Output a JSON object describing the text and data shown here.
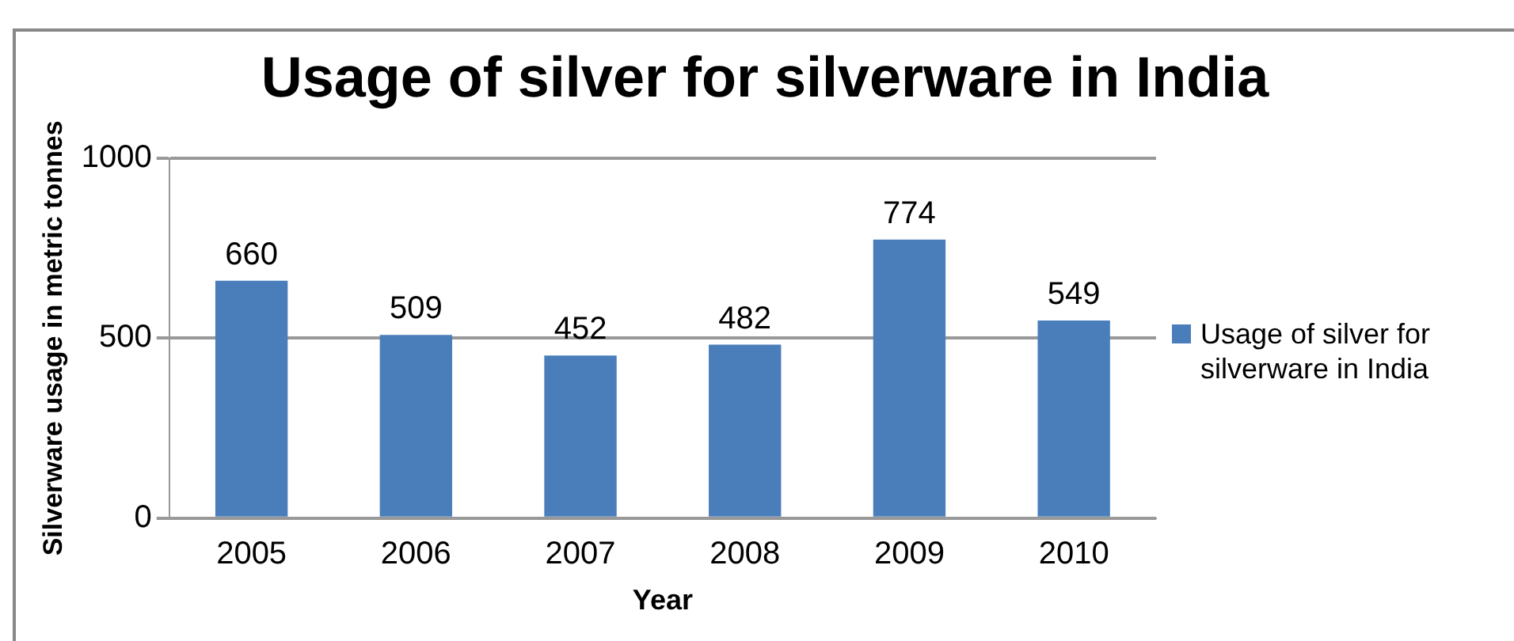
{
  "chart_data": {
    "type": "bar",
    "title": "Usage of silver for silverware in India",
    "xlabel": "Year",
    "ylabel": "Silverware usage in metric tonnes",
    "categories": [
      "2005",
      "2006",
      "2007",
      "2008",
      "2009",
      "2010"
    ],
    "series": [
      {
        "name": "Usage of silver for silverware in India",
        "color": "#4a7ebb",
        "values": [
          660,
          509,
          452,
          482,
          774,
          549
        ]
      }
    ],
    "ylim": [
      0,
      1000
    ],
    "yticks": [
      0,
      500,
      1000
    ],
    "grid": "y",
    "legend": "right",
    "data_labels": true
  }
}
